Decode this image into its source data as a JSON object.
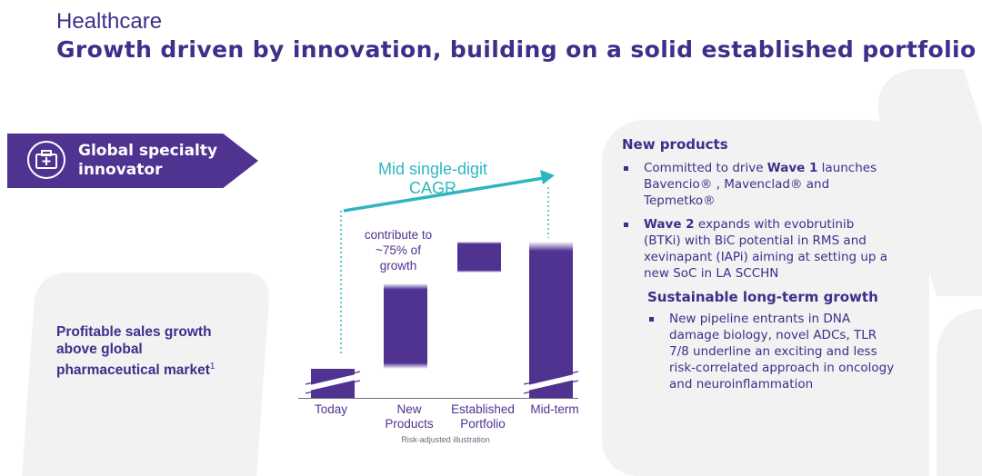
{
  "header": {
    "eyebrow": "Healthcare",
    "title": "Growth driven by innovation, building on a solid established portfolio"
  },
  "banner": {
    "line1": "Global specialty",
    "line2": "innovator",
    "icon": "medical-kit-icon"
  },
  "left_text": {
    "line1": "Profitable sales growth",
    "line2": "above global",
    "line3": "pharmaceutical market",
    "footnote_marker": "1"
  },
  "chart_data": {
    "type": "waterfall",
    "categories": [
      "Today",
      "New Products",
      "Established Portfolio",
      "Mid-term"
    ],
    "tick_labels": [
      [
        "Today"
      ],
      [
        "New",
        "Products"
      ],
      [
        "Established",
        "Portfolio"
      ],
      [
        "Mid-term"
      ]
    ],
    "bars": [
      {
        "category": "Today",
        "start": 0,
        "end": 1.0,
        "kind": "total"
      },
      {
        "category": "New Products",
        "start": 1.0,
        "end": 3.0,
        "kind": "delta"
      },
      {
        "category": "Established Portfolio",
        "start": 3.0,
        "end": 3.6,
        "kind": "delta"
      },
      {
        "category": "Mid-term",
        "start": 0,
        "end": 3.6,
        "kind": "total"
      }
    ],
    "cagr_label_line1": "Mid single-digit",
    "cagr_label_line2": "CAGR",
    "contribution_note": [
      "contribute to",
      "~75% of",
      "growth"
    ],
    "footnote": "Risk-adjusted illustration",
    "colors": {
      "bar": "#503291",
      "arrow": "#2db6bf"
    }
  },
  "right_panel": {
    "new_products_heading": "New products",
    "bullets1": [
      {
        "pre": "Committed to drive ",
        "bold": "Wave 1",
        "post": " launches Bavencio® , Mavenclad® and Tepmetko®"
      },
      {
        "pre": "",
        "bold": "Wave 2",
        "post": " expands with evobrutinib (BTKi) with BiC potential in RMS and xevinapant (IAPi) aiming at setting up a new SoC in LA SCCHN"
      }
    ],
    "sustainable_heading": "Sustainable long-term growth",
    "bullets2": [
      {
        "text": "New pipeline entrants in DNA damage biology, novel ADCs, TLR 7/8 underline an exciting and less risk-correlated approach in oncology and neuroinflammation"
      }
    ]
  },
  "colors": {
    "primary": "#3d2f8a",
    "banner": "#503291",
    "accent": "#2db6bf",
    "shape": "#f3f1f2"
  }
}
